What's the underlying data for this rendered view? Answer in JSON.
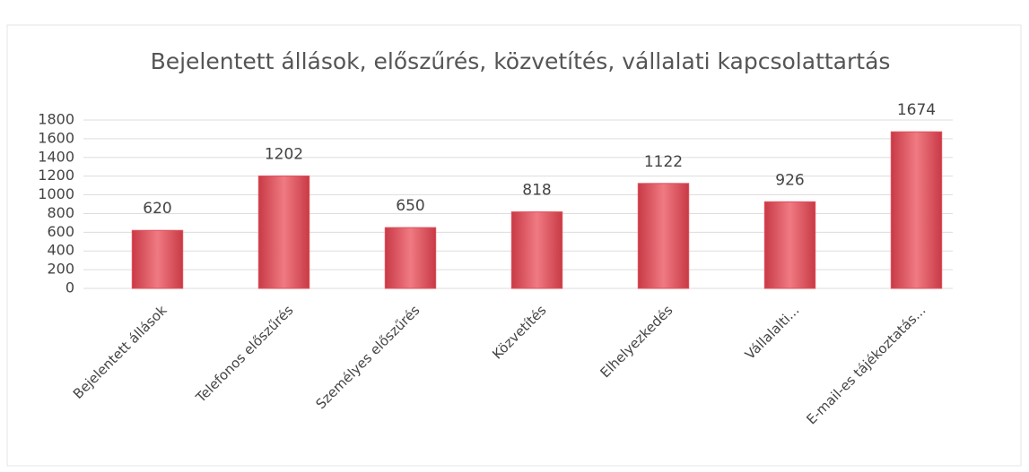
{
  "chart_data": {
    "type": "bar",
    "title": "Bejelentett állások, előszűrés, közvetítés, vállalati kapcsolattartás",
    "categories": [
      "Bejelentett állások",
      "Telefonos előszűrés",
      "Személyes előszűrés",
      "Közvetítés",
      "Elhelyezkedés",
      "Vállalalti...",
      "E-mail-es tájékoztatás..."
    ],
    "values": [
      620,
      1202,
      650,
      818,
      1122,
      926,
      1674
    ],
    "color": "#e0505c",
    "ylim": [
      0,
      1800
    ],
    "yticks": [
      0,
      200,
      400,
      600,
      800,
      1000,
      1200,
      1400,
      1600,
      1800
    ],
    "grid": true
  }
}
